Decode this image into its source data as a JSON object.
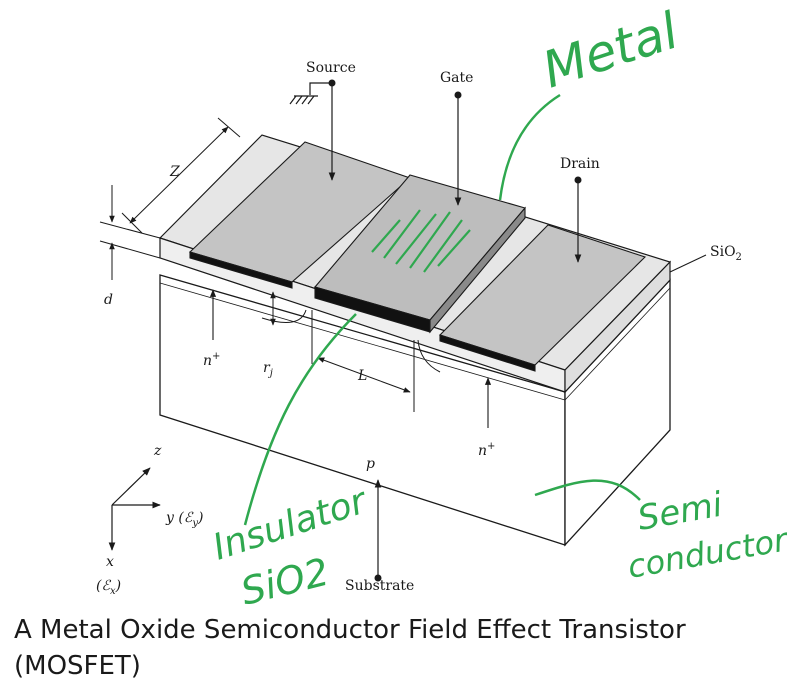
{
  "diagram": {
    "labels": {
      "source": "Source",
      "gate": "Gate",
      "drain": "Drain",
      "oxide": "SiO",
      "oxide_sub": "2",
      "z_dim": "Z",
      "d_dim": "d",
      "l_dim": "L",
      "rj_dim": "r",
      "rj_sub": "j",
      "n_plus_left": "n",
      "n_plus_right": "n",
      "plus": "+",
      "p_region": "p",
      "substrate": "Substrate",
      "axis_z": "z",
      "axis_y": "y (ℰ",
      "axis_y_sub": "y",
      "axis_y_close": ")",
      "axis_x": "x",
      "axis_x_field": "(ℰ",
      "axis_x_sub": "x",
      "axis_x_close": ")"
    },
    "annotations": {
      "metal": "Metal",
      "insulator_line1": "Insulator",
      "insulator_line2": "SiO2",
      "semi_line1": "Semi",
      "semi_line2": "conductor"
    },
    "colors": {
      "ink": "#1a1a1a",
      "metal_fill": "#c8c8c8",
      "oxide_fill": "#e4e4e4",
      "dark_layer": "#111111",
      "annotation": "#2fa84f"
    }
  },
  "caption": {
    "line1": "A Metal Oxide Semiconductor Field Effect Transistor",
    "line2": "(MOSFET)"
  }
}
